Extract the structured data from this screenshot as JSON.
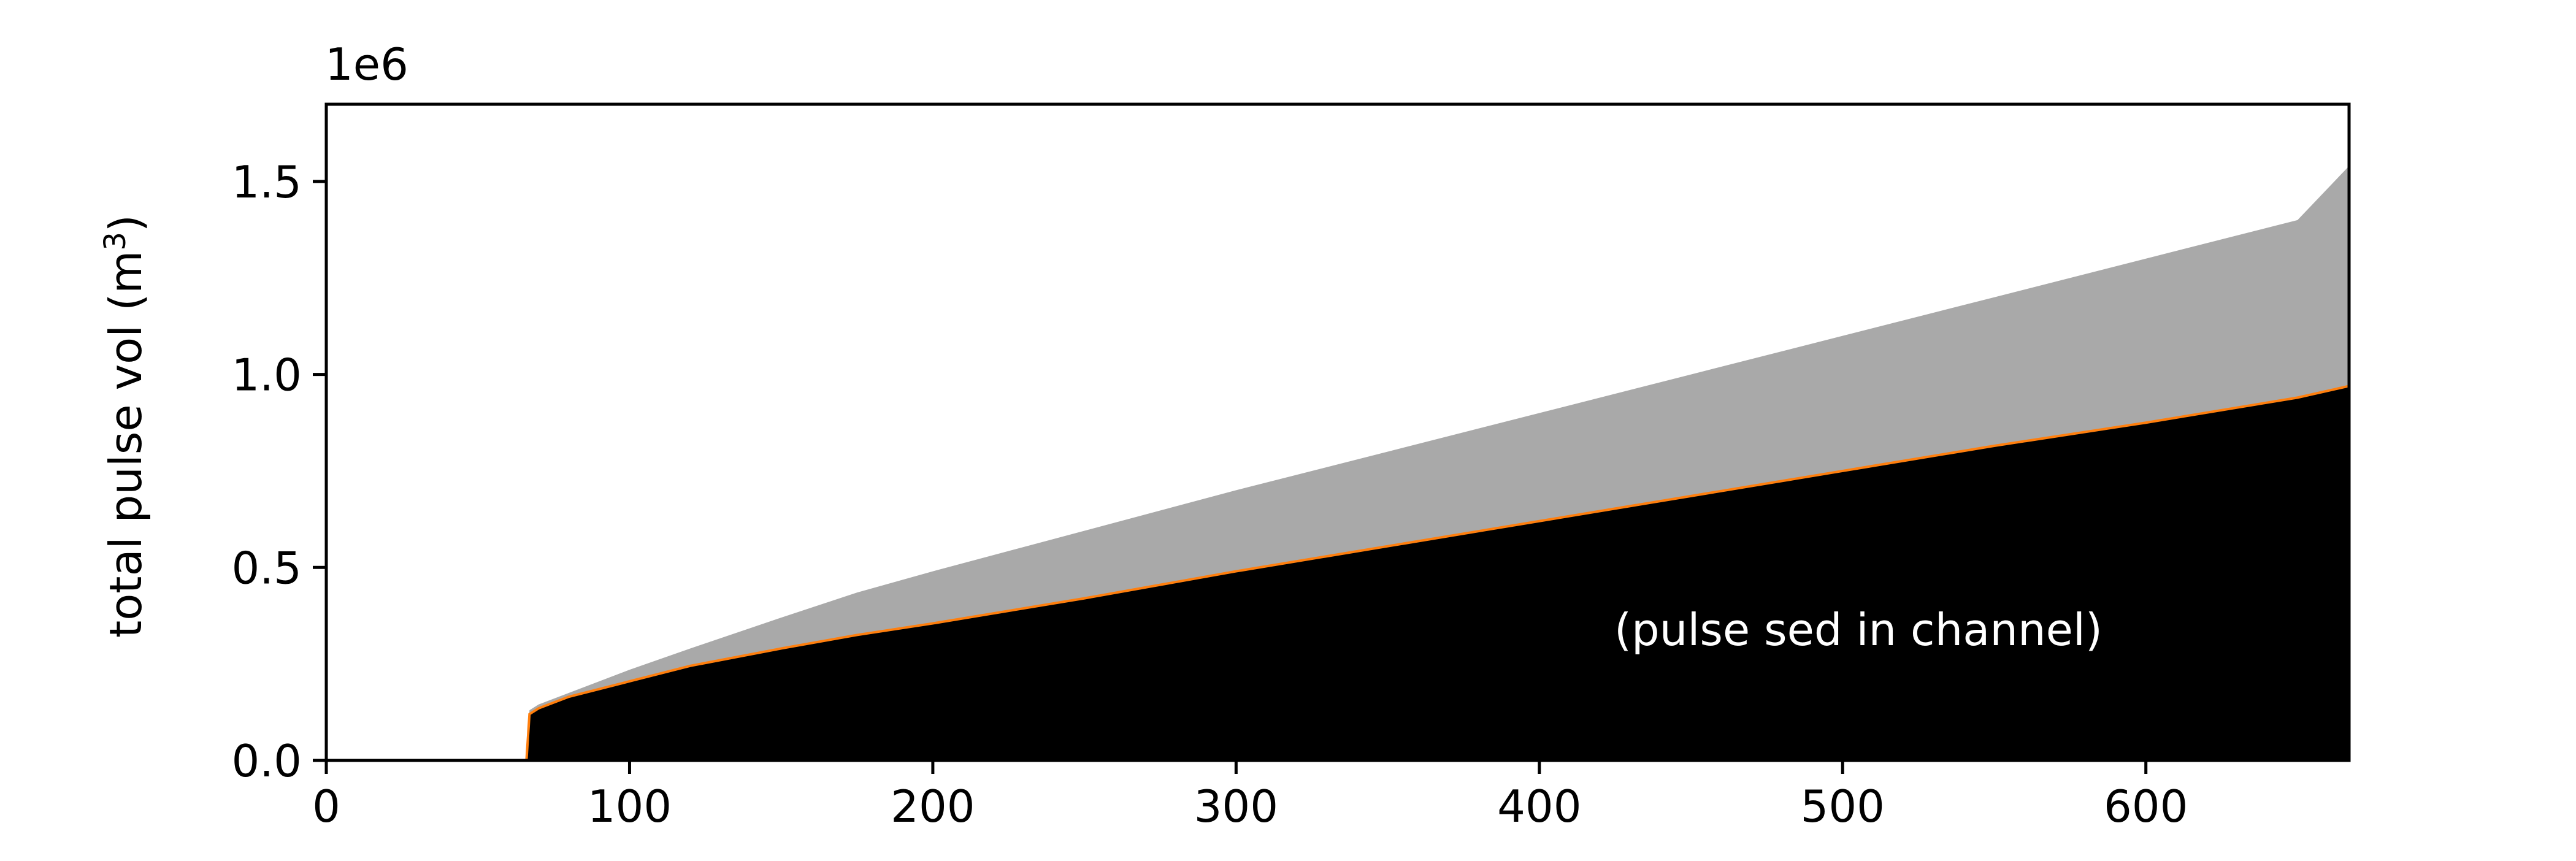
{
  "chart_data": {
    "type": "area",
    "title": "",
    "xlabel": "",
    "ylabel_text": "total pulse vol (m",
    "ylabel_sup": "3",
    "ylabel_close": ")",
    "ylabel": "total pulse vol (m³)",
    "y_offset_label": "1e6",
    "xlim": [
      0,
      667
    ],
    "ylim": [
      0,
      1.7
    ],
    "y_scale_factor": 1000000,
    "x_ticks": [
      0,
      100,
      200,
      300,
      400,
      500,
      600
    ],
    "x_tick_labels": [
      "0",
      "100",
      "200",
      "300",
      "400",
      "500",
      "600"
    ],
    "y_ticks": [
      0.0,
      0.5,
      1.0,
      1.5
    ],
    "y_tick_labels": [
      "0.0",
      "0.5",
      "1.0",
      "1.5"
    ],
    "grid": false,
    "annotation": "(pulse sed in channel)",
    "colors": {
      "total": "#a9a9a9",
      "channel": "#000000",
      "channel_edge": "#ff7f0e"
    },
    "x": [
      0,
      66,
      67,
      70,
      80,
      100,
      120,
      150,
      175,
      200,
      250,
      300,
      350,
      400,
      450,
      500,
      550,
      600,
      650,
      667
    ],
    "series": [
      {
        "key": "total",
        "values": [
          0.0,
          0.0,
          0.13,
          0.145,
          0.175,
          0.235,
          0.29,
          0.37,
          0.435,
          0.49,
          0.595,
          0.7,
          0.8,
          0.9,
          1.0,
          1.1,
          1.2,
          1.3,
          1.4,
          1.54
        ]
      },
      {
        "key": "channel",
        "values": [
          0.0,
          0.0,
          0.12,
          0.135,
          0.165,
          0.205,
          0.245,
          0.29,
          0.325,
          0.355,
          0.42,
          0.49,
          0.555,
          0.62,
          0.685,
          0.75,
          0.815,
          0.875,
          0.94,
          0.97
        ]
      }
    ]
  }
}
